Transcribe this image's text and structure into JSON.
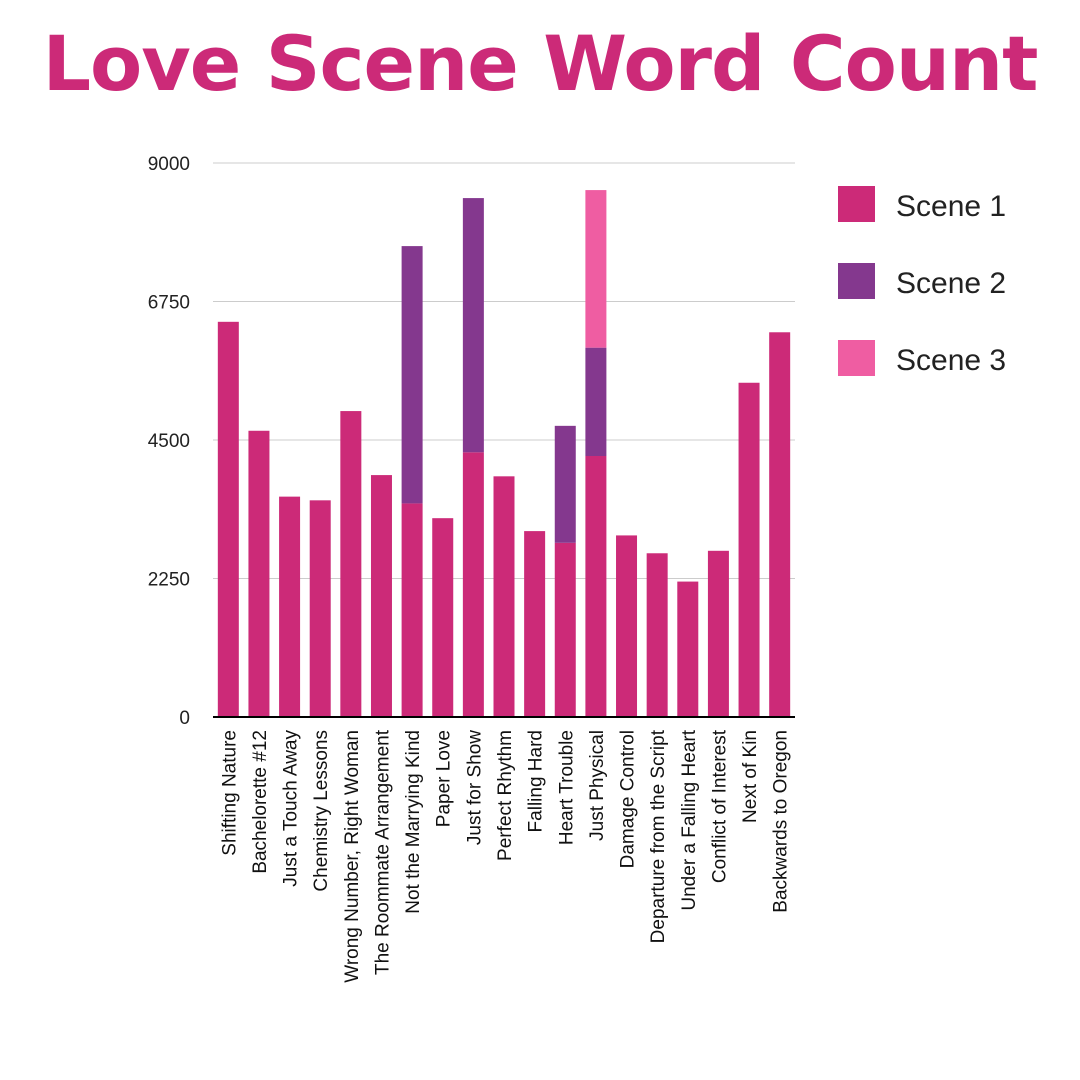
{
  "colors": {
    "title": "#cc2a78",
    "scene1": "#cc2a78",
    "scene2": "#84388e",
    "scene3": "#ef5da2",
    "grid": "#cccccc",
    "axis": "#000000"
  },
  "chart_data": {
    "type": "bar",
    "stacked": true,
    "title": "Love Scene Word Count",
    "xlabel": "",
    "ylabel": "",
    "ylim": [
      0,
      9000
    ],
    "yticks": [
      "0",
      "2250",
      "4500",
      "6750",
      "9000"
    ],
    "grid": true,
    "legend_position": "right",
    "categories": [
      "Shifting Nature",
      "Bachelorette #12",
      "Just a Touch Away",
      "Chemistry Lessons",
      "Wrong Number, Right Woman",
      "The Roommate Arrangement",
      "Not the Marrying Kind",
      "Paper Love",
      "Just for Show",
      "Perfect Rhythm",
      "Falling Hard",
      "Heart Trouble",
      "Just Physical",
      "Damage Control",
      "Departure from the Script",
      "Under a Falling Heart",
      "Conflict of Interest",
      "Next of Kin",
      "Backwards to Oregon"
    ],
    "series": [
      {
        "name": "Scene 1",
        "values": [
          6420,
          4650,
          3580,
          3520,
          4970,
          3930,
          3470,
          3230,
          4300,
          3910,
          3020,
          2830,
          4240,
          2950,
          2660,
          2200,
          2700,
          5430,
          6250
        ]
      },
      {
        "name": "Scene 2",
        "values": [
          0,
          0,
          0,
          0,
          0,
          0,
          4180,
          0,
          4130,
          0,
          0,
          1900,
          1760,
          0,
          0,
          0,
          0,
          0,
          0
        ]
      },
      {
        "name": "Scene 3",
        "values": [
          0,
          0,
          0,
          0,
          0,
          0,
          0,
          0,
          0,
          0,
          0,
          0,
          2560,
          0,
          0,
          0,
          0,
          0,
          0
        ]
      }
    ]
  }
}
